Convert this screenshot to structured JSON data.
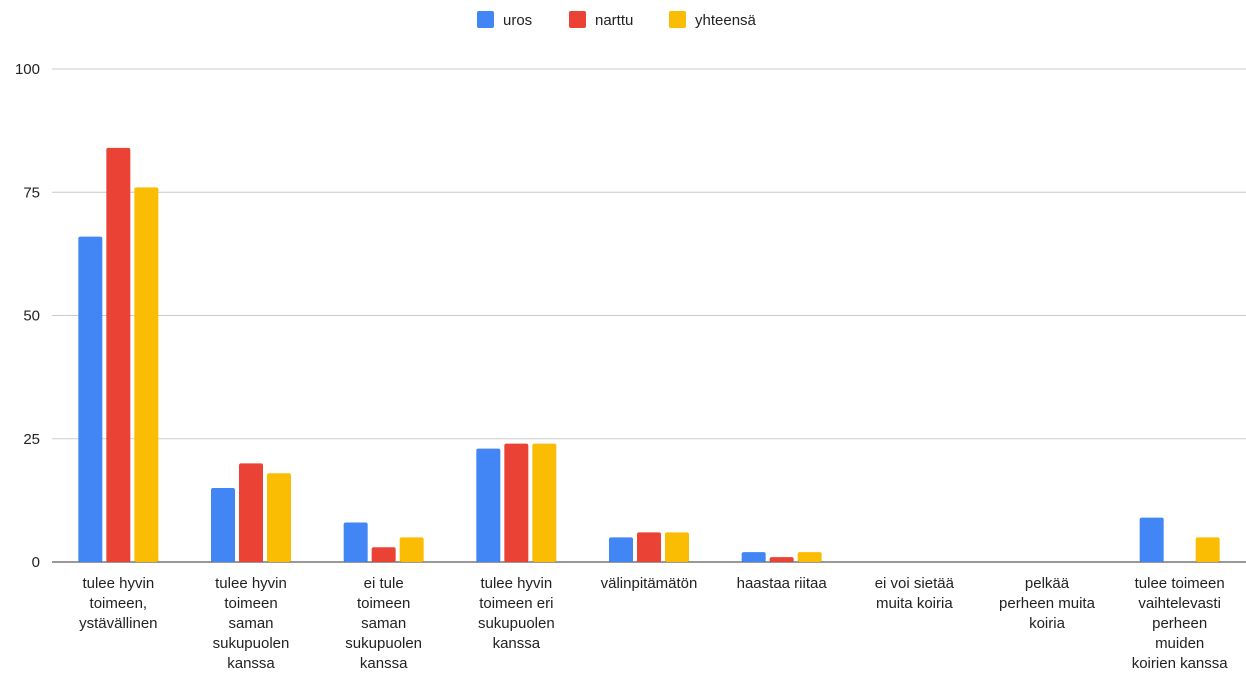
{
  "chart_data": {
    "type": "bar",
    "title": "",
    "xlabel": "",
    "ylabel": "",
    "ylim": [
      0,
      100
    ],
    "yticks": [
      0,
      25,
      50,
      75,
      100
    ],
    "grid": true,
    "legend_position": "top-center",
    "categories": [
      [
        "tulee hyvin",
        "toimeen,",
        "ystävällinen"
      ],
      [
        "tulee hyvin",
        "toimeen",
        "saman",
        "sukupuolen",
        "kanssa"
      ],
      [
        "ei tule",
        "toimeen",
        "saman",
        "sukupuolen",
        "kanssa"
      ],
      [
        "tulee hyvin",
        "toimeen eri",
        "sukupuolen",
        "kanssa"
      ],
      [
        "välinpitämätön"
      ],
      [
        "haastaa riitaa"
      ],
      [
        "ei voi sietää",
        "muita koiria"
      ],
      [
        "pelkää",
        "perheen muita",
        "koiria"
      ],
      [
        "tulee toimeen",
        "vaihtelevasti",
        "perheen",
        "muiden",
        "koirien kanssa"
      ]
    ],
    "series": [
      {
        "name": "uros",
        "color": "#4285f4",
        "values": [
          66,
          15,
          8,
          23,
          5,
          2,
          0,
          0,
          9
        ]
      },
      {
        "name": "narttu",
        "color": "#ea4335",
        "values": [
          84,
          20,
          3,
          24,
          6,
          1,
          0,
          0,
          0
        ]
      },
      {
        "name": "yhteensä",
        "color": "#fbbc04",
        "values": [
          76,
          18,
          5,
          24,
          6,
          2,
          0,
          0,
          5
        ]
      }
    ]
  }
}
